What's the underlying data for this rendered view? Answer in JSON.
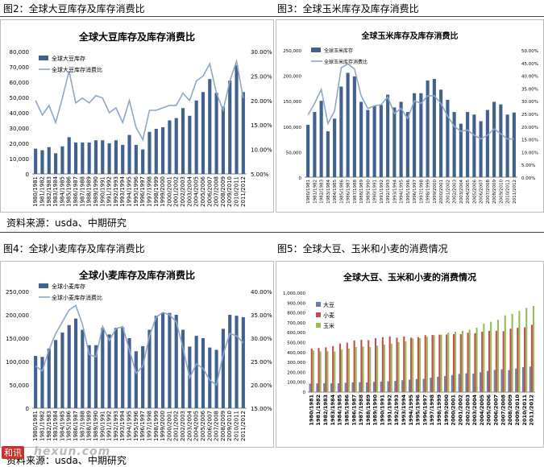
{
  "captions": {
    "fig2": "图2：全球大豆库存及库存消费比",
    "fig3": "图3：全球玉米库存及库存消费比",
    "fig4": "图4：全球小麦库存及库存消费比",
    "fig5": "图5：全球大豆、玉米和小麦的消费情况"
  },
  "sources": {
    "top": "资料来源：usda、中期研究",
    "bottom": "资料来源：usda、中期研究"
  },
  "watermark": {
    "badge": "和讯",
    "text": "hexun.com"
  },
  "colors": {
    "bar": "#41628f",
    "line": "#8ea6cc",
    "soy": "#6a80a8",
    "wheat": "#c0504d",
    "corn": "#9bbb59"
  },
  "chart_data": [
    {
      "id": "soy",
      "type": "bar",
      "title": "全球大豆库存及库存消费比",
      "categories": [
        "1980/1981",
        "1981/1982",
        "1982/1983",
        "1983/1984",
        "1984/1985",
        "1985/1986",
        "1986/1987",
        "1987/1988",
        "1988/1989",
        "1989/1990",
        "1990/1991",
        "1991/1992",
        "1992/1993",
        "1993/1994",
        "1994/1995",
        "1995/1996",
        "1996/1997",
        "1997/1998",
        "1998/1999",
        "1999/2000",
        "2000/2001",
        "2001/2002",
        "2002/2003",
        "2003/2004",
        "2004/2005",
        "2005/2006",
        "2006/2007",
        "2007/2008",
        "2008/2009",
        "2009/2010",
        "2010/2011",
        "2011/2012"
      ],
      "series": [
        {
          "name": "全球大豆库存",
          "kind": "bar",
          "axis": "left",
          "values": [
            16500,
            15500,
            17500,
            13500,
            18000,
            24000,
            20500,
            20500,
            20500,
            22000,
            22000,
            20000,
            22000,
            19000,
            25500,
            19000,
            16000,
            27500,
            29500,
            30500,
            35000,
            36500,
            43000,
            38000,
            48000,
            53500,
            62000,
            53000,
            44000,
            61000,
            71000,
            53500
          ]
        },
        {
          "name": "全球大豆库存消费比",
          "kind": "line",
          "axis": "right",
          "values": [
            0.2,
            0.17,
            0.19,
            0.155,
            0.205,
            0.26,
            0.195,
            0.205,
            0.195,
            0.21,
            0.205,
            0.175,
            0.185,
            0.155,
            0.2,
            0.145,
            0.12,
            0.18,
            0.18,
            0.185,
            0.19,
            0.19,
            0.215,
            0.2,
            0.24,
            0.25,
            0.275,
            0.215,
            0.18,
            0.24,
            0.28,
            0.205
          ]
        }
      ],
      "left_ticks": [
        "0",
        "10,000",
        "20,000",
        "30,000",
        "40,000",
        "50,000",
        "60,000",
        "70,000",
        "80,000"
      ],
      "right_ticks": [
        "5.00%",
        "10.00%",
        "15.00%",
        "20.00%",
        "25.00%",
        "30.00%"
      ],
      "ylim_left": [
        0,
        80000
      ],
      "ylim_right": [
        0.05,
        0.3
      ],
      "legend": "top-left"
    },
    {
      "id": "corn",
      "type": "bar",
      "title": "全球玉米库存及库存消费比",
      "categories": [
        "1980/1981",
        "1981/1982",
        "1982/1983",
        "1983/1984",
        "1984/1985",
        "1985/1986",
        "1986/1987",
        "1987/1988",
        "1988/1989",
        "1989/1990",
        "1990/1991",
        "1991/1992",
        "1992/1993",
        "1993/1994",
        "1994/1995",
        "1995/1996",
        "1996/1997",
        "1997/1998",
        "1998/1999",
        "1999/2000",
        "2000/2001",
        "2001/2002",
        "2002/2003",
        "2003/2004",
        "2004/2005",
        "2005/2006",
        "2006/2007",
        "2007/2008",
        "2008/2009",
        "2009/2010",
        "2010/2011",
        "2011/2012"
      ],
      "series": [
        {
          "name": "全球玉米库存",
          "kind": "bar",
          "axis": "left",
          "values": [
            103000,
            128000,
            150000,
            90000,
            115000,
            178000,
            205000,
            198000,
            148000,
            132000,
            140000,
            142000,
            162000,
            137000,
            148000,
            128000,
            165000,
            165000,
            190000,
            193000,
            172000,
            152000,
            128000,
            105000,
            128000,
            123000,
            110000,
            132000,
            148000,
            143000,
            123000,
            127000
          ]
        },
        {
          "name": "全球玉米库存消费比",
          "kind": "line",
          "axis": "right",
          "values": [
            0.245,
            0.29,
            0.345,
            0.21,
            0.26,
            0.43,
            0.445,
            0.425,
            0.32,
            0.27,
            0.28,
            0.285,
            0.315,
            0.25,
            0.27,
            0.23,
            0.3,
            0.29,
            0.32,
            0.32,
            0.29,
            0.24,
            0.2,
            0.18,
            0.185,
            0.165,
            0.15,
            0.165,
            0.19,
            0.17,
            0.15,
            0.15
          ]
        }
      ],
      "left_ticks": [
        "0",
        "50,000",
        "100,000",
        "150,000",
        "200,000",
        "250,000"
      ],
      "right_ticks": [
        "0.00%",
        "5.00%",
        "10.00%",
        "15.00%",
        "20.00%",
        "25.00%",
        "30.00%",
        "35.00%",
        "40.00%",
        "45.00%",
        "50.00%"
      ],
      "ylim_left": [
        0,
        250000
      ],
      "ylim_right": [
        0,
        0.5
      ],
      "legend": "top-left"
    },
    {
      "id": "wheat",
      "type": "bar",
      "title": "全球小麦库存及库存消费比",
      "categories": [
        "1980/1981",
        "1981/1982",
        "1982/1983",
        "1983/1984",
        "1984/1985",
        "1985/1986",
        "1986/1987",
        "1987/1988",
        "1988/1989",
        "1989/1990",
        "1990/1991",
        "1991/1992",
        "1992/1993",
        "1993/1994",
        "1994/1995",
        "1995/1996",
        "1996/1997",
        "1997/1998",
        "1998/1999",
        "1999/2000",
        "2000/2001",
        "2001/2002",
        "2002/2003",
        "2003/2004",
        "2004/2005",
        "2005/2006",
        "2006/2007",
        "2007/2008",
        "2008/2009",
        "2009/2010",
        "2010/2011",
        "2011/2012"
      ],
      "series": [
        {
          "name": "全球小麦库存",
          "kind": "bar",
          "axis": "left",
          "values": [
            112000,
            110000,
            128000,
            146000,
            162000,
            178000,
            192000,
            168000,
            135000,
            135000,
            172000,
            158000,
            172000,
            173000,
            150000,
            122000,
            133000,
            168000,
            198000,
            205000,
            204000,
            200000,
            168000,
            132000,
            155000,
            150000,
            130000,
            125000,
            170000,
            200000,
            198000,
            195000
          ]
        },
        {
          "name": "全球小麦库存消费比",
          "kind": "line",
          "axis": "right",
          "values": [
            0.24,
            0.23,
            0.275,
            0.31,
            0.335,
            0.36,
            0.37,
            0.33,
            0.265,
            0.26,
            0.325,
            0.295,
            0.32,
            0.325,
            0.275,
            0.225,
            0.24,
            0.305,
            0.345,
            0.355,
            0.35,
            0.335,
            0.28,
            0.215,
            0.245,
            0.235,
            0.21,
            0.2,
            0.265,
            0.31,
            0.305,
            0.29
          ]
        }
      ],
      "left_ticks": [
        "0",
        "50,000",
        "100,000",
        "150,000",
        "200,000",
        "250,000"
      ],
      "right_ticks": [
        "15.00%",
        "20.00%",
        "25.00%",
        "30.00%",
        "35.00%",
        "40.00%"
      ],
      "ylim_left": [
        0,
        250000
      ],
      "ylim_right": [
        0.15,
        0.4
      ],
      "legend": "top-left"
    },
    {
      "id": "consumption",
      "type": "bar",
      "title": "全球大豆、玉米和小麦的消费情况",
      "categories": [
        "1980/1981",
        "1981/1982",
        "1982/1983",
        "1983/1984",
        "1984/1985",
        "1985/1986",
        "1986/1987",
        "1987/1988",
        "1988/1989",
        "1989/1990",
        "1990/1991",
        "1991/1992",
        "1992/1993",
        "1993/1994",
        "1994/1995",
        "1995/1996",
        "1996/1997",
        "1997/1998",
        "1998/1999",
        "1999/2000",
        "2000/2001",
        "2001/2002",
        "2002/2003",
        "2003/2004",
        "2004/2005",
        "2005/2006",
        "2006/2007",
        "2007/2008",
        "2008/2009",
        "2009/2010",
        "2010/2011",
        "2011/2012"
      ],
      "series": [
        {
          "name": "大豆",
          "values": [
            85000,
            88000,
            90000,
            88000,
            90000,
            94000,
            98000,
            100000,
            98000,
            104000,
            106000,
            110000,
            113000,
            120000,
            126000,
            132000,
            134000,
            145000,
            155000,
            162000,
            172000,
            184000,
            190000,
            188000,
            200000,
            214000,
            224000,
            230000,
            222000,
            238000,
            252000,
            258000
          ]
        },
        {
          "name": "小麦",
          "values": [
            440000,
            445000,
            452000,
            465000,
            490000,
            498000,
            522000,
            528000,
            525000,
            545000,
            555000,
            562000,
            550000,
            562000,
            550000,
            555000,
            575000,
            578000,
            580000,
            582000,
            585000,
            585000,
            600000,
            595000,
            610000,
            618000,
            620000,
            615000,
            640000,
            650000,
            655000,
            680000
          ]
        },
        {
          "name": "玉米",
          "values": [
            420000,
            410000,
            412000,
            410000,
            430000,
            440000,
            455000,
            460000,
            455000,
            470000,
            480000,
            490000,
            505000,
            515000,
            540000,
            545000,
            560000,
            575000,
            580000,
            600000,
            610000,
            620000,
            630000,
            650000,
            690000,
            710000,
            730000,
            775000,
            790000,
            820000,
            850000,
            870000
          ]
        }
      ],
      "left_ticks": [
        "0",
        "100,000",
        "200,000",
        "300,000",
        "400,000",
        "500,000",
        "600,000",
        "700,000",
        "800,000",
        "900,000",
        "1,000,000"
      ],
      "ylim": [
        0,
        1000000
      ],
      "legend": "top-left"
    }
  ]
}
